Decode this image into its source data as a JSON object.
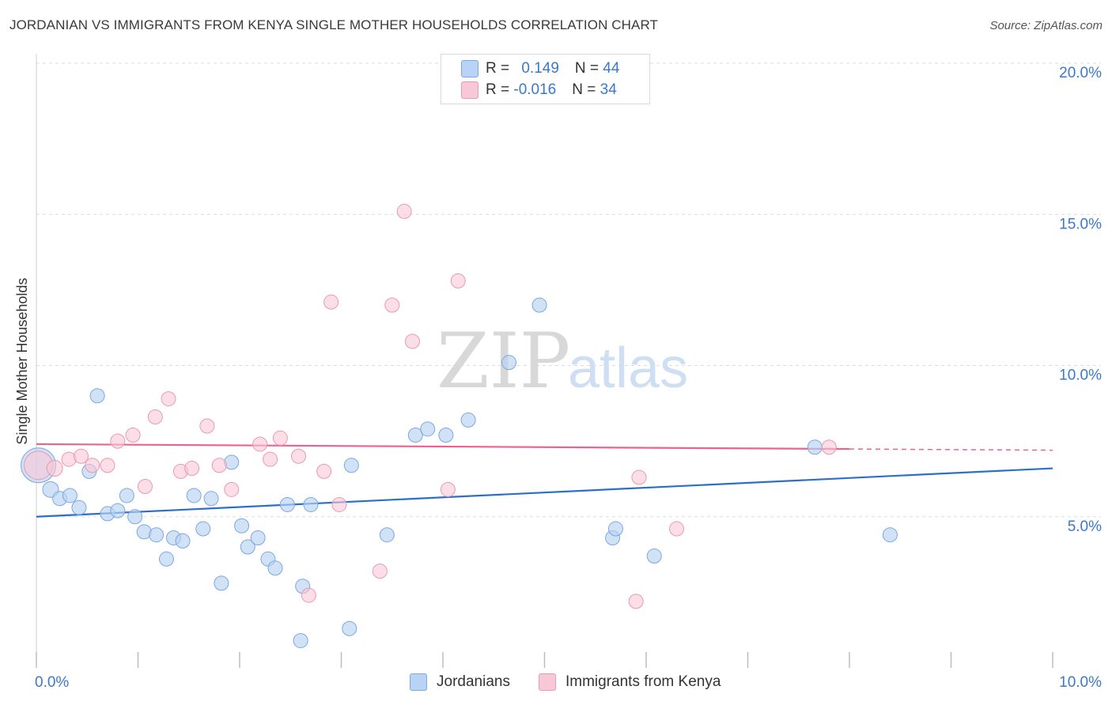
{
  "title": "JORDANIAN VS IMMIGRANTS FROM KENYA SINGLE MOTHER HOUSEHOLDS CORRELATION CHART",
  "source": "Source: ZipAtlas.com",
  "watermark": {
    "zip": "ZIP",
    "atlas": "atlas"
  },
  "colors": {
    "blue_fill": "#b8d3f3",
    "blue_stroke": "#7aa8e0",
    "blue_line": "#2a6fcc",
    "pink_fill": "#f8c8d6",
    "pink_stroke": "#eb98b3",
    "pink_line": "#e8648f",
    "tick_text": "#3b78c9",
    "grid": "#dcdcdc"
  },
  "legend": {
    "rows": [
      {
        "r_label": "R = ",
        "r_value": "0.149",
        "n_label": "N = ",
        "n_value": "44",
        "color": "#b8d3f3"
      },
      {
        "r_label": "R = ",
        "r_value": "-0.016",
        "n_label": "N = ",
        "n_value": "34",
        "color": "#f8c8d6"
      }
    ]
  },
  "bottom_legend": [
    "Jordanians",
    "Immigrants from Kenya"
  ],
  "chart_data": {
    "type": "scatter",
    "title": "JORDANIAN VS IMMIGRANTS FROM KENYA SINGLE MOTHER HOUSEHOLDS CORRELATION CHART",
    "xlabel": "",
    "ylabel": "Single Mother Households",
    "xlim": [
      0,
      10
    ],
    "ylim": [
      0,
      20
    ],
    "x_ticks": [
      "0.0%",
      "10.0%"
    ],
    "y_ticks": [
      {
        "value": 5,
        "label": "5.0%"
      },
      {
        "value": 10,
        "label": "10.0%"
      },
      {
        "value": 15,
        "label": "15.0%"
      },
      {
        "value": 20,
        "label": "20.0%"
      }
    ],
    "series": [
      {
        "name": "Jordanians",
        "r": 0.149,
        "n": 44,
        "trend": {
          "x": [
            0,
            10
          ],
          "y": [
            5.0,
            6.6
          ]
        },
        "points": [
          [
            0.02,
            6.7,
            22
          ],
          [
            0.14,
            5.9,
            10
          ],
          [
            0.23,
            5.6,
            9
          ],
          [
            0.33,
            5.7,
            9
          ],
          [
            0.42,
            5.3,
            9
          ],
          [
            0.52,
            6.5,
            9
          ],
          [
            0.6,
            9.0,
            9
          ],
          [
            0.7,
            5.1,
            9
          ],
          [
            0.8,
            5.2,
            9
          ],
          [
            0.89,
            5.7,
            9
          ],
          [
            0.97,
            5.0,
            9
          ],
          [
            1.06,
            4.5,
            9
          ],
          [
            1.18,
            4.4,
            9
          ],
          [
            1.28,
            3.6,
            9
          ],
          [
            1.35,
            4.3,
            9
          ],
          [
            1.44,
            4.2,
            9
          ],
          [
            1.55,
            5.7,
            9
          ],
          [
            1.64,
            4.6,
            9
          ],
          [
            1.72,
            5.6,
            9
          ],
          [
            1.82,
            2.8,
            9
          ],
          [
            1.92,
            6.8,
            9
          ],
          [
            2.02,
            4.7,
            9
          ],
          [
            2.08,
            4.0,
            9
          ],
          [
            2.18,
            4.3,
            9
          ],
          [
            2.28,
            3.6,
            9
          ],
          [
            2.35,
            3.3,
            9
          ],
          [
            2.47,
            5.4,
            9
          ],
          [
            2.62,
            2.7,
            9
          ],
          [
            2.7,
            5.4,
            9
          ],
          [
            2.6,
            0.9,
            9
          ],
          [
            3.1,
            6.7,
            9
          ],
          [
            3.08,
            1.3,
            9
          ],
          [
            3.45,
            4.4,
            9
          ],
          [
            3.73,
            7.7,
            9
          ],
          [
            3.85,
            7.9,
            9
          ],
          [
            4.03,
            7.7,
            9
          ],
          [
            4.25,
            8.2,
            9
          ],
          [
            4.65,
            10.1,
            9
          ],
          [
            4.95,
            12.0,
            9
          ],
          [
            5.67,
            4.3,
            9
          ],
          [
            5.7,
            4.6,
            9
          ],
          [
            6.08,
            3.7,
            9
          ],
          [
            7.66,
            7.3,
            9
          ],
          [
            8.4,
            4.4,
            9
          ]
        ]
      },
      {
        "name": "Immigrants from Kenya",
        "r": -0.016,
        "n": 34,
        "trend": {
          "x": [
            0,
            10
          ],
          "y": [
            7.4,
            7.2
          ]
        },
        "points": [
          [
            0.02,
            6.7,
            18
          ],
          [
            0.18,
            6.6,
            10
          ],
          [
            0.32,
            6.9,
            9
          ],
          [
            0.44,
            7.0,
            9
          ],
          [
            0.55,
            6.7,
            9
          ],
          [
            0.7,
            6.7,
            9
          ],
          [
            0.8,
            7.5,
            9
          ],
          [
            0.95,
            7.7,
            9
          ],
          [
            1.07,
            6.0,
            9
          ],
          [
            1.17,
            8.3,
            9
          ],
          [
            1.3,
            8.9,
            9
          ],
          [
            1.42,
            6.5,
            9
          ],
          [
            1.53,
            6.6,
            9
          ],
          [
            1.68,
            8.0,
            9
          ],
          [
            1.8,
            6.7,
            9
          ],
          [
            1.92,
            5.9,
            9
          ],
          [
            2.2,
            7.4,
            9
          ],
          [
            2.3,
            6.9,
            9
          ],
          [
            2.4,
            7.6,
            9
          ],
          [
            2.58,
            7.0,
            9
          ],
          [
            2.68,
            2.4,
            9
          ],
          [
            2.83,
            6.5,
            9
          ],
          [
            2.9,
            12.1,
            9
          ],
          [
            2.98,
            5.4,
            9
          ],
          [
            3.38,
            3.2,
            9
          ],
          [
            3.5,
            12.0,
            9
          ],
          [
            3.7,
            10.8,
            9
          ],
          [
            3.62,
            15.1,
            9
          ],
          [
            4.05,
            5.9,
            9
          ],
          [
            4.15,
            12.8,
            9
          ],
          [
            5.93,
            6.3,
            9
          ],
          [
            5.9,
            2.2,
            9
          ],
          [
            6.3,
            4.6,
            9
          ],
          [
            7.8,
            7.3,
            9
          ]
        ]
      }
    ]
  }
}
